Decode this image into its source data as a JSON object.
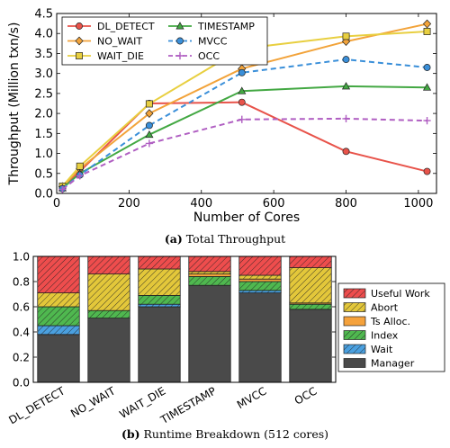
{
  "chart_data": [
    {
      "type": "line",
      "xlabel": "Number of Cores",
      "ylabel": "Throughput (Million txn/s)",
      "xlim": [
        0,
        1050
      ],
      "ylim": [
        0,
        4.5
      ],
      "xticks": [
        0,
        200,
        400,
        600,
        800,
        1000
      ],
      "yticks": [
        0.0,
        0.5,
        1.0,
        1.5,
        2.0,
        2.5,
        3.0,
        3.5,
        4.0,
        4.5
      ],
      "xtick_labels": [
        "0",
        "200",
        "400",
        "600",
        "800",
        "1000"
      ],
      "ytick_labels": [
        "0.0",
        "0.5",
        "1.0",
        "1.5",
        "2.0",
        "2.5",
        "3.0",
        "3.5",
        "4.0",
        "4.5"
      ],
      "grid": false,
      "legend_position": "top-left",
      "x": [
        16,
        64,
        256,
        512,
        800,
        1024
      ],
      "series": [
        {
          "name": "DL_DETECT",
          "color": "#e8534a",
          "marker": "circle",
          "dash": "solid",
          "values": [
            0.18,
            0.55,
            2.25,
            2.28,
            1.05,
            0.55
          ]
        },
        {
          "name": "NO_WAIT",
          "color": "#f2a33a",
          "marker": "diamond",
          "dash": "solid",
          "values": [
            0.17,
            0.62,
            2.0,
            3.12,
            3.8,
            4.24
          ]
        },
        {
          "name": "WAIT_DIE",
          "color": "#e8cf40",
          "marker": "square",
          "dash": "solid",
          "values": [
            0.18,
            0.68,
            2.24,
            3.62,
            3.93,
            4.05
          ]
        },
        {
          "name": "TIMESTAMP",
          "color": "#43a843",
          "marker": "triangle",
          "dash": "solid",
          "values": [
            0.13,
            0.5,
            1.47,
            2.56,
            2.68,
            2.65
          ]
        },
        {
          "name": "MVCC",
          "color": "#3a8fd9",
          "marker": "circle",
          "dash": "dashed",
          "values": [
            0.12,
            0.46,
            1.7,
            3.02,
            3.35,
            3.15
          ]
        },
        {
          "name": "OCC",
          "color": "#b05fc2",
          "marker": "plus",
          "dash": "dashed",
          "values": [
            0.1,
            0.44,
            1.25,
            1.85,
            1.87,
            1.82
          ]
        }
      ]
    },
    {
      "type": "bar",
      "stacked": true,
      "categories": [
        "DL_DETECT",
        "NO_WAIT",
        "WAIT_DIE",
        "TIMESTAMP",
        "MVCC",
        "OCC"
      ],
      "ylim": [
        0,
        1.0
      ],
      "yticks": [
        0.0,
        0.2,
        0.4,
        0.6,
        0.8,
        1.0
      ],
      "ytick_labels": [
        "0.0",
        "0.2",
        "0.4",
        "0.6",
        "0.8",
        "1.0"
      ],
      "legend_position": "right",
      "series": [
        {
          "name": "Manager",
          "color": "#4a4a4a",
          "hatch": "none",
          "values": [
            0.38,
            0.51,
            0.6,
            0.77,
            0.71,
            0.58
          ]
        },
        {
          "name": "Wait",
          "color": "#4aa0e0",
          "hatch": "diagonal",
          "values": [
            0.07,
            0.0,
            0.02,
            0.0,
            0.02,
            0.0
          ]
        },
        {
          "name": "Index",
          "color": "#4fb84f",
          "hatch": "diagonal",
          "values": [
            0.15,
            0.06,
            0.07,
            0.07,
            0.07,
            0.04
          ]
        },
        {
          "name": "Ts Alloc.",
          "color": "#f5a23c",
          "hatch": "none",
          "values": [
            0.0,
            0.0,
            0.0,
            0.02,
            0.02,
            0.01
          ]
        },
        {
          "name": "Abort",
          "color": "#e3c73a",
          "hatch": "diagonal",
          "values": [
            0.11,
            0.29,
            0.21,
            0.02,
            0.03,
            0.28
          ]
        },
        {
          "name": "Useful Work",
          "color": "#ee4d4d",
          "hatch": "diagonal",
          "values": [
            0.29,
            0.14,
            0.1,
            0.12,
            0.15,
            0.09
          ]
        }
      ]
    }
  ],
  "captions": {
    "a_label": "(a)",
    "a_text": " Total Throughput",
    "b_label": "(b)",
    "b_text": " Runtime Breakdown (512 cores)"
  }
}
